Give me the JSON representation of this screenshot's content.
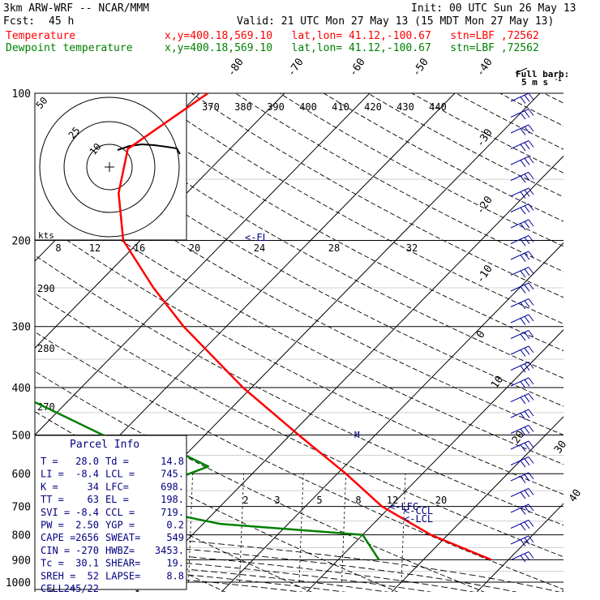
{
  "header": {
    "model": "3km ARW-WRF -- NCAR/MMM",
    "init": "Init: 00 UTC Sun 26 May 13",
    "fcst_label": "Fcst:",
    "fcst_value": "45 h",
    "valid": "Valid: 21 UTC Mon 27 May 13 (15 MDT Mon 27 May 13)",
    "temp_label": "Temperature",
    "dew_label": "Dewpoint temperature",
    "location": "x,y=400.18,569.10   lat,lon= 41.12,-100.67   stn=LBF ,72562"
  },
  "colors": {
    "temperature": "#ff0000",
    "dewpoint": "#008000",
    "parcel_box": "#000080",
    "barbs": "#0000a0",
    "grid": "#000000"
  },
  "chart_data": {
    "type": "skew-t",
    "y_axis": "pressure (hPa)",
    "y_scale": "log",
    "ylim": [
      1000,
      100
    ],
    "pressure_ticks": [
      100,
      200,
      300,
      400,
      500,
      600,
      700,
      800,
      900,
      1000
    ],
    "isotherm_labels_top": [
      "-80",
      "-70",
      "-60",
      "-50",
      "-40"
    ],
    "isotherm_labels_right": [
      "-30",
      "-20",
      "-10",
      "0",
      "10",
      "20",
      "30",
      "40"
    ],
    "theta_labels": [
      "370",
      "380",
      "390",
      "400",
      "410",
      "420",
      "430",
      "440"
    ],
    "mixing_ratio_labels": [
      "2",
      "3",
      "5",
      "8",
      "12",
      "20"
    ],
    "height_labels": [
      {
        "text": "290"
      },
      {
        "text": "280"
      },
      {
        "text": "270"
      }
    ],
    "temperature": [
      {
        "p": 100,
        "t": -59
      },
      {
        "p": 130,
        "t": -62
      },
      {
        "p": 160,
        "t": -58
      },
      {
        "p": 200,
        "t": -52
      },
      {
        "p": 250,
        "t": -43
      },
      {
        "p": 300,
        "t": -35
      },
      {
        "p": 400,
        "t": -21
      },
      {
        "p": 500,
        "t": -9
      },
      {
        "p": 600,
        "t": 1
      },
      {
        "p": 700,
        "t": 9
      },
      {
        "p": 800,
        "t": 18
      },
      {
        "p": 900,
        "t": 28
      }
    ],
    "dewpoint": [
      {
        "p": 100,
        "t": -82
      },
      {
        "p": 130,
        "t": -86
      },
      {
        "p": 160,
        "t": -86
      },
      {
        "p": 200,
        "t": -80
      },
      {
        "p": 250,
        "t": -72
      },
      {
        "p": 300,
        "t": -64
      },
      {
        "p": 400,
        "t": -49
      },
      {
        "p": 450,
        "t": -40
      },
      {
        "p": 500,
        "t": -32
      },
      {
        "p": 550,
        "t": -20
      },
      {
        "p": 580,
        "t": -16
      },
      {
        "p": 640,
        "t": -20
      },
      {
        "p": 700,
        "t": -20
      },
      {
        "p": 760,
        "t": -8
      },
      {
        "p": 800,
        "t": 10
      },
      {
        "p": 900,
        "t": 14.8
      }
    ],
    "hodograph": {
      "title": "kts",
      "axis_labels": [
        "8",
        "12",
        "16",
        "20",
        "24",
        "28",
        "32"
      ],
      "ring_labels": [
        "50",
        "25",
        "10"
      ]
    },
    "annotations": [
      "<-EL",
      "<-LFC",
      "<-CCL",
      "<-LCL",
      "M"
    ]
  },
  "wind_legend": {
    "title": "Full barb:",
    "value": "5 m s",
    "exp": "-1"
  },
  "parcel_info": {
    "title": "Parcel Info",
    "rows": [
      {
        "k1": "T   =",
        "v1": "28.0",
        "k2": "Td =",
        "v2": "14.8"
      },
      {
        "k1": "LI  =",
        "v1": "-8.4",
        "k2": "LCL =",
        "v2": "745."
      },
      {
        "k1": "K   =",
        "v1": "34",
        "k2": "LFC=",
        "v2": "698."
      },
      {
        "k1": "TT  =",
        "v1": "63",
        "k2": "EL  =",
        "v2": "198."
      },
      {
        "k1": "SVI =",
        "v1": "-8.4",
        "k2": "CCL =",
        "v2": "719."
      },
      {
        "k1": "PW  =",
        "v1": "2.50",
        "k2": "YGP =",
        "v2": "0.2"
      },
      {
        "k1": "CAPE =",
        "v1": "2656",
        "k2": "SWEAT=",
        "v2": "549"
      },
      {
        "k1": "CIN  =",
        "v1": "-270",
        "k2": "HWBZ=",
        "v2": "3453."
      },
      {
        "k1": "Tc  =",
        "v1": "30.1",
        "k2": "SHEAR=",
        "v2": "19."
      },
      {
        "k1": "SREH =",
        "v1": "52",
        "k2": "LAPSE=",
        "v2": "8.8"
      },
      {
        "k1": "CELL =",
        "v1": "245/22",
        "k2": "",
        "v2": ""
      }
    ]
  }
}
